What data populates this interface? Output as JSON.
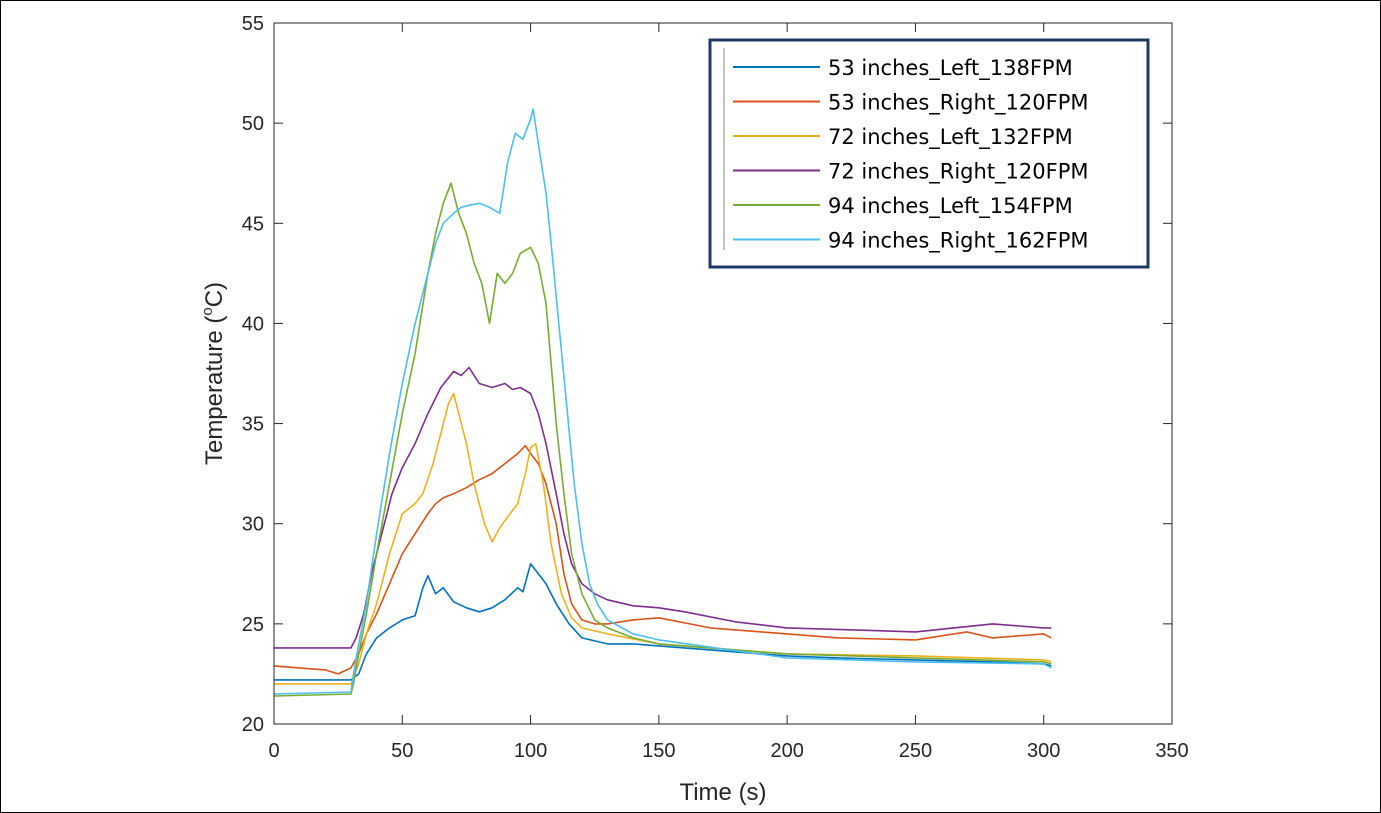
{
  "chart_data": {
    "type": "line",
    "xlabel": "Time (s)",
    "ylabel_parts": {
      "prefix": "Temperature (",
      "superscript": "o",
      "suffix": "C)"
    },
    "xlim": [
      0,
      350
    ],
    "ylim": [
      20,
      55
    ],
    "x_ticks": [
      0,
      50,
      100,
      150,
      200,
      250,
      300,
      350
    ],
    "y_ticks": [
      20,
      25,
      30,
      35,
      40,
      45,
      50,
      55
    ],
    "grid": false,
    "legend_position": "top-right",
    "series": [
      {
        "name": "53 inches_Left_138FPM",
        "color": "#0072BD",
        "x": [
          0,
          30,
          31,
          33,
          36,
          40,
          45,
          50,
          55,
          58,
          60,
          63,
          66,
          70,
          75,
          80,
          85,
          90,
          95,
          97,
          100,
          103,
          106,
          110,
          115,
          120,
          130,
          140,
          150,
          160,
          180,
          200,
          220,
          250,
          280,
          300,
          303
        ],
        "y": [
          22.2,
          22.2,
          22.3,
          22.5,
          23.5,
          24.3,
          24.8,
          25.2,
          25.4,
          26.8,
          27.4,
          26.5,
          26.8,
          26.1,
          25.8,
          25.6,
          25.8,
          26.2,
          26.8,
          26.6,
          28.0,
          27.5,
          27.0,
          26.0,
          25.0,
          24.3,
          24.0,
          24.0,
          23.9,
          23.8,
          23.6,
          23.4,
          23.3,
          23.2,
          23.1,
          23.0,
          22.9
        ]
      },
      {
        "name": "53 inches_Right_120FPM",
        "color": "#D95319",
        "x": [
          0,
          20,
          25,
          30,
          33,
          36,
          40,
          45,
          50,
          55,
          60,
          63,
          66,
          70,
          75,
          80,
          85,
          90,
          95,
          98,
          100,
          103,
          106,
          110,
          113,
          116,
          120,
          125,
          130,
          140,
          150,
          170,
          200,
          220,
          250,
          270,
          280,
          300,
          303
        ],
        "y": [
          22.9,
          22.7,
          22.5,
          22.8,
          23.5,
          24.5,
          25.5,
          27.0,
          28.5,
          29.5,
          30.5,
          31.0,
          31.3,
          31.5,
          31.8,
          32.2,
          32.5,
          33.0,
          33.5,
          33.9,
          33.5,
          33.0,
          32.0,
          30.0,
          27.5,
          26.0,
          25.2,
          25.0,
          25.0,
          25.2,
          25.3,
          24.8,
          24.5,
          24.3,
          24.2,
          24.6,
          24.3,
          24.5,
          24.3
        ]
      },
      {
        "name": "72 inches_Left_132FPM",
        "color": "#EDB120",
        "x": [
          0,
          30,
          33,
          36,
          40,
          45,
          50,
          55,
          58,
          62,
          65,
          68,
          70,
          72,
          75,
          78,
          82,
          85,
          88,
          92,
          95,
          98,
          100,
          102,
          105,
          108,
          112,
          116,
          120,
          130,
          150,
          200,
          250,
          300,
          303
        ],
        "y": [
          22.0,
          22.0,
          23.0,
          24.5,
          26.0,
          28.5,
          30.5,
          31.0,
          31.5,
          33.0,
          34.5,
          36.0,
          36.5,
          35.5,
          34.0,
          32.0,
          30.0,
          29.1,
          29.8,
          30.5,
          31.0,
          32.5,
          33.8,
          34.0,
          32.0,
          29.0,
          26.5,
          25.3,
          24.8,
          24.5,
          24.0,
          23.5,
          23.4,
          23.2,
          23.1
        ]
      },
      {
        "name": "72 inches_Right_120FPM",
        "color": "#7E2F8E",
        "x": [
          0,
          30,
          32,
          35,
          38,
          42,
          46,
          50,
          55,
          60,
          65,
          70,
          73,
          76,
          80,
          85,
          90,
          93,
          96,
          100,
          103,
          106,
          110,
          113,
          116,
          120,
          125,
          130,
          140,
          150,
          160,
          180,
          200,
          250,
          280,
          300,
          303
        ],
        "y": [
          23.8,
          23.8,
          24.3,
          25.5,
          27.5,
          29.5,
          31.5,
          32.8,
          34.0,
          35.5,
          36.8,
          37.6,
          37.4,
          37.8,
          37.0,
          36.8,
          37.0,
          36.7,
          36.8,
          36.5,
          35.5,
          34.0,
          31.5,
          29.5,
          28.0,
          27.0,
          26.5,
          26.2,
          25.9,
          25.8,
          25.6,
          25.1,
          24.8,
          24.6,
          25.0,
          24.8,
          24.8
        ]
      },
      {
        "name": "94 inches_Left_154FPM",
        "color": "#77AC30",
        "x": [
          0,
          30,
          31,
          33,
          36,
          40,
          45,
          50,
          55,
          60,
          63,
          66,
          69,
          72,
          75,
          78,
          81,
          84,
          87,
          90,
          93,
          96,
          100,
          103,
          106,
          108,
          110,
          113,
          116,
          120,
          125,
          130,
          140,
          150,
          200,
          250,
          300,
          303
        ],
        "y": [
          21.4,
          21.5,
          22.0,
          23.5,
          25.5,
          28.5,
          32.0,
          35.5,
          38.5,
          42.5,
          44.5,
          46.0,
          47.0,
          45.5,
          44.5,
          43.0,
          42.0,
          40.0,
          42.5,
          42.0,
          42.5,
          43.5,
          43.8,
          43.0,
          41.0,
          38.0,
          35.0,
          31.5,
          28.5,
          26.5,
          25.2,
          24.8,
          24.3,
          24.0,
          23.5,
          23.3,
          23.1,
          23.0
        ]
      },
      {
        "name": "94 inches_Right_162FPM",
        "color": "#4DBEEE",
        "x": [
          0,
          30,
          31,
          33,
          36,
          40,
          45,
          50,
          55,
          60,
          63,
          66,
          70,
          73,
          76,
          80,
          84,
          88,
          91,
          94,
          97,
          100,
          101,
          103,
          106,
          108,
          111,
          114,
          117,
          120,
          123,
          126,
          130,
          140,
          150,
          200,
          250,
          300,
          303
        ],
        "y": [
          21.5,
          21.6,
          22.5,
          24.0,
          26.0,
          29.5,
          33.5,
          37.0,
          40.0,
          42.5,
          44.0,
          45.0,
          45.5,
          45.8,
          45.9,
          46.0,
          45.8,
          45.5,
          48.0,
          49.5,
          49.2,
          50.2,
          50.7,
          49.0,
          46.5,
          44.0,
          40.0,
          36.0,
          32.0,
          29.0,
          27.0,
          26.0,
          25.2,
          24.5,
          24.2,
          23.3,
          23.1,
          23.0,
          22.8
        ]
      }
    ]
  }
}
